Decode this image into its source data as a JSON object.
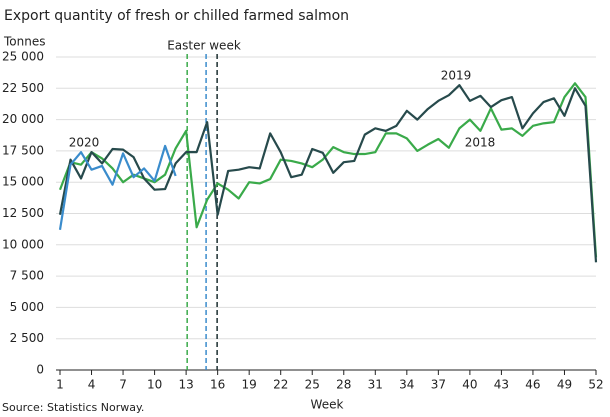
{
  "chart_data": {
    "type": "line",
    "title": "Export quantity of fresh or chilled farmed salmon",
    "y_label": "Tonnes",
    "x_label": "Week",
    "source": "Source: Statistics Norway.",
    "x": [
      1,
      2,
      3,
      4,
      5,
      6,
      7,
      8,
      9,
      10,
      11,
      12,
      13,
      14,
      15,
      16,
      17,
      18,
      19,
      20,
      21,
      22,
      23,
      24,
      25,
      26,
      27,
      28,
      29,
      30,
      31,
      32,
      33,
      34,
      35,
      36,
      37,
      38,
      39,
      40,
      41,
      42,
      43,
      44,
      45,
      46,
      47,
      48,
      49,
      50,
      51,
      52
    ],
    "series": [
      {
        "name": "2018",
        "color": "#3aaa4a",
        "values": [
          14400,
          16600,
          16400,
          17400,
          16900,
          16100,
          15000,
          15600,
          15300,
          15000,
          15600,
          17700,
          19100,
          11400,
          13600,
          14900,
          14400,
          13700,
          15000,
          14900,
          15250,
          16800,
          16700,
          16500,
          16200,
          16800,
          17800,
          17400,
          17250,
          17250,
          17400,
          18900,
          18900,
          18500,
          17500,
          18000,
          18450,
          17750,
          19300,
          20000,
          19100,
          20900,
          19200,
          19300,
          18700,
          19500,
          19700,
          19800,
          21800,
          22900,
          21800,
          9000
        ]
      },
      {
        "name": "2019",
        "color": "#274a4c",
        "values": [
          12400,
          16800,
          15300,
          17400,
          16500,
          17650,
          17600,
          17000,
          15300,
          14400,
          14450,
          16500,
          17400,
          17400,
          19800,
          12400,
          15900,
          16000,
          16200,
          16100,
          18900,
          17400,
          15400,
          15600,
          17650,
          17350,
          15750,
          16600,
          16700,
          18800,
          19300,
          19100,
          19500,
          20700,
          20000,
          20850,
          21500,
          21950,
          22750,
          21500,
          21900,
          21000,
          21550,
          21800,
          19300,
          20500,
          21400,
          21700,
          20300,
          22500,
          21100,
          8600
        ]
      },
      {
        "name": "2020",
        "color": "#3a8ccc",
        "values": [
          11200,
          16400,
          17400,
          16000,
          16300,
          14800,
          17300,
          15400,
          16100,
          15100,
          17900,
          15500,
          null,
          null,
          null,
          null,
          null,
          null,
          null,
          null,
          null,
          null,
          null,
          null,
          null,
          null,
          null,
          null,
          null,
          null,
          null,
          null,
          null,
          null,
          null,
          null,
          null,
          null,
          null,
          null,
          null,
          null,
          null,
          null,
          null,
          null,
          null,
          null,
          null,
          null,
          null,
          null
        ]
      }
    ],
    "easter_label": "Easter week",
    "easter_weeks": [
      {
        "x": 13.1,
        "color": "#3aaa4a"
      },
      {
        "x": 14.9,
        "color": "#3a8ccc"
      },
      {
        "x": 15.95,
        "color": "#1b2e2f"
      }
    ],
    "xlim": [
      1,
      52
    ],
    "xticks": [
      1,
      4,
      7,
      10,
      13,
      16,
      19,
      22,
      25,
      28,
      31,
      34,
      37,
      40,
      43,
      46,
      49,
      52
    ],
    "ylim": [
      0,
      25000
    ],
    "yticks": [
      0,
      {
        "value": 2500,
        "label": "2 500"
      },
      {
        "value": 5000,
        "label": "5 000"
      },
      {
        "value": 7500,
        "label": "7 500"
      },
      {
        "value": 10000,
        "label": "10 000"
      },
      {
        "value": 12500,
        "label": "12 500"
      },
      {
        "value": 15000,
        "label": "15 000"
      },
      {
        "value": 17500,
        "label": "17 500"
      },
      {
        "value": 20000,
        "label": "20 000"
      },
      {
        "value": 22500,
        "label": "22 500"
      },
      {
        "value": 25000,
        "label": "25 000"
      }
    ],
    "grid": true
  }
}
